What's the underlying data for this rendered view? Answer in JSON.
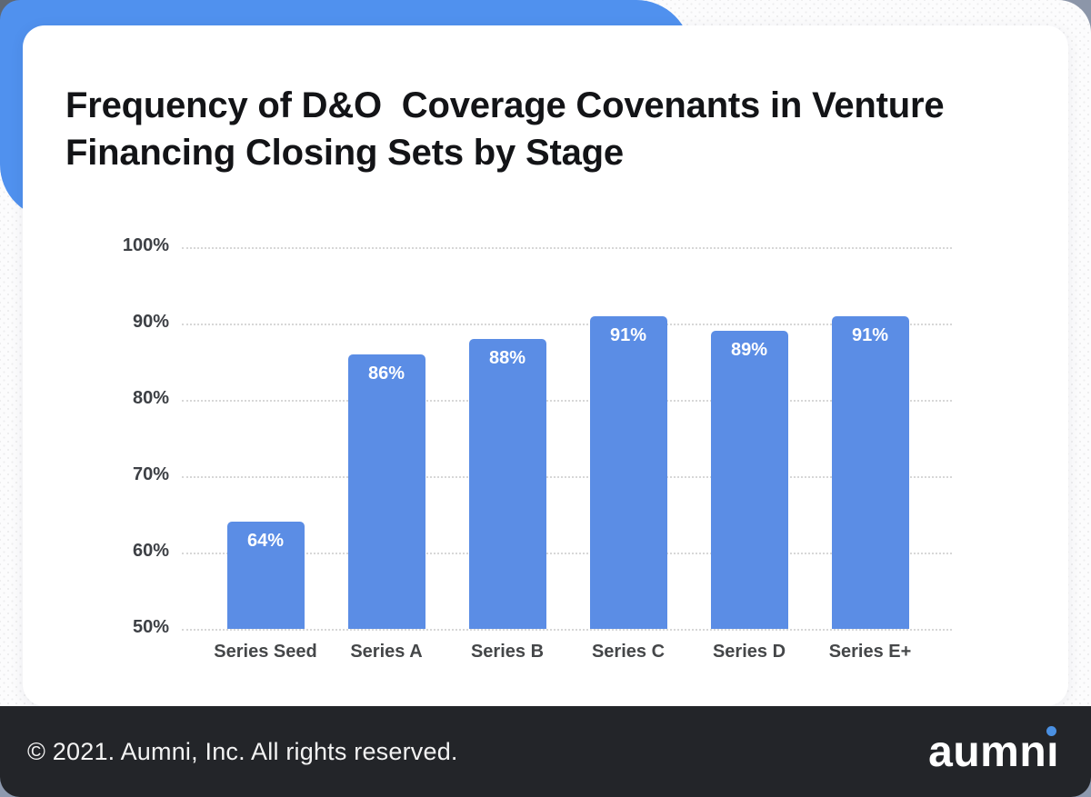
{
  "header": {
    "title_lines": [
      "Frequency of D&O  Coverage Covenants in Venture",
      "Financing Closing Sets by Stage"
    ]
  },
  "chart_data": {
    "type": "bar",
    "title": "Frequency of D&O Coverage Covenants in Venture Financing Closing Sets by Stage",
    "categories": [
      "Series Seed",
      "Series A",
      "Series B",
      "Series C",
      "Series D",
      "Series E+"
    ],
    "values": [
      64,
      86,
      88,
      91,
      89,
      91
    ],
    "value_labels": [
      "64%",
      "86%",
      "88%",
      "91%",
      "89%",
      "91%"
    ],
    "y_axis": {
      "ticks": [
        "100%",
        "90%",
        "80%",
        "70%",
        "60%",
        "50%"
      ],
      "min": 50,
      "max": 100,
      "unit": "%"
    },
    "xlabel": "",
    "ylabel": "",
    "grid": "horizontal-dotted",
    "legend": "none",
    "bar_color": "#5b8de5",
    "value_label_color": "#ffffff"
  },
  "footer": {
    "copyright": "© 2021. Aumni, Inc. All rights reserved.",
    "logo_text": "aumni",
    "logo_dot_color": "#4a90e2"
  },
  "colors": {
    "bar": "#5b8de5",
    "accent_blob": "#5091ee",
    "footer_bg": "#232529",
    "corner_accent": "#8d99ae",
    "corner_accent_dark": "#5f6874",
    "axis_label": "#3d4045",
    "gridline": "#d7d7d7",
    "title": "#131417",
    "card_bg": "#ffffff",
    "page_bg": "#fcfcfd"
  }
}
